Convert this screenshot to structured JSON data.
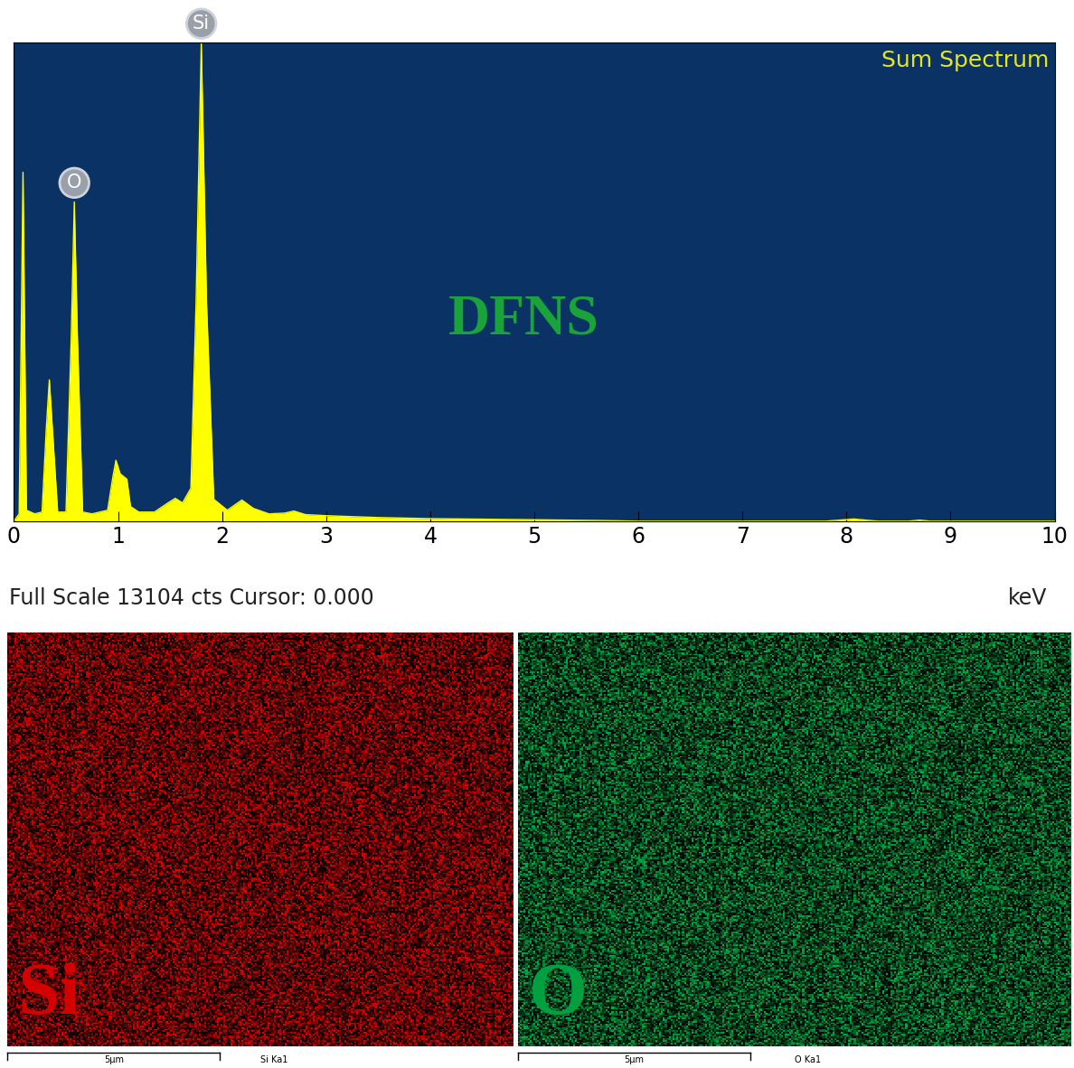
{
  "chart_data": {
    "type": "area",
    "title": "Sum Spectrum",
    "annotations": [
      "DFNS",
      "Full Scale 13104 cts Cursor: 0.000"
    ],
    "x_label": "keV",
    "x": [
      0.0,
      0.05,
      0.087,
      0.12,
      0.2,
      0.27,
      0.31,
      0.34,
      0.37,
      0.42,
      0.5,
      0.55,
      0.58,
      0.61,
      0.66,
      0.75,
      0.9,
      0.95,
      0.98,
      1.02,
      1.06,
      1.085,
      1.12,
      1.2,
      1.35,
      1.48,
      1.55,
      1.62,
      1.7,
      1.75,
      1.8,
      1.85,
      1.92,
      2.05,
      2.19,
      2.3,
      2.45,
      2.6,
      2.69,
      2.8,
      3.0,
      3.5,
      4.0,
      5.0,
      5.6,
      6.0,
      7.8,
      8.07,
      8.3,
      8.6,
      8.7,
      8.8,
      10.0
    ],
    "values": [
      0,
      200,
      9555,
      300,
      200,
      250,
      2500,
      3873,
      2500,
      250,
      250,
      5000,
      8744,
      5000,
      250,
      200,
      300,
      1200,
      1670,
      1300,
      1206,
      1150,
      400,
      250,
      250,
      500,
      626,
      500,
      900,
      6000,
      13104,
      6000,
      600,
      300,
      580,
      350,
      200,
      220,
      278,
      180,
      150,
      100,
      70,
      40,
      20,
      0,
      0,
      60,
      0,
      0,
      30,
      0,
      0
    ],
    "color": "#ffff00",
    "peak_labels": [
      {
        "label": "O",
        "x": 0.58,
        "y": 8744
      },
      {
        "label": "Si",
        "x": 1.8,
        "y": 13104
      }
    ],
    "xlim": [
      0,
      10
    ],
    "ylim": [
      0,
      13104
    ],
    "xticks": [
      0,
      1,
      2,
      3,
      4,
      5,
      6,
      7,
      8,
      9,
      10
    ],
    "yticks": [],
    "tick_labels": "x"
  },
  "maps": [
    {
      "label": "Si",
      "caption": "Si Ka1",
      "scale_bar": "5µm",
      "color": "#d40000"
    },
    {
      "label": "O",
      "caption": "O Ka1",
      "scale_bar": "5µm",
      "color": "#00a040"
    }
  ]
}
